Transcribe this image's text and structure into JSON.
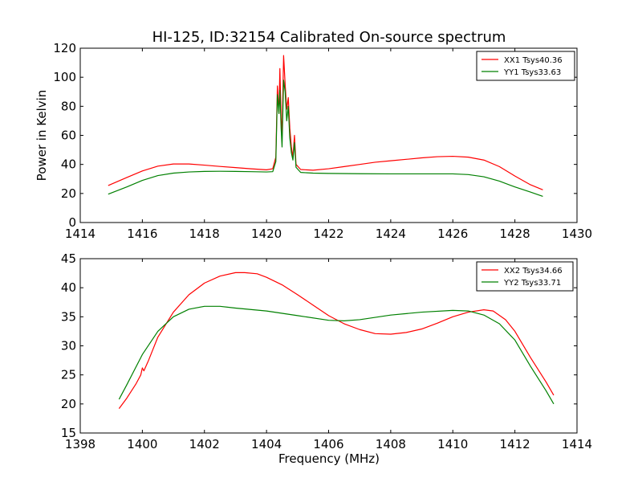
{
  "chart_data": [
    {
      "type": "line",
      "title": "HI-125, ID:32154 Calibrated On-source spectrum",
      "xlabel": "",
      "ylabel": "Power in Kelvin",
      "xlim": [
        1414,
        1430
      ],
      "ylim": [
        0,
        120
      ],
      "xticks": [
        1414,
        1416,
        1418,
        1420,
        1422,
        1424,
        1426,
        1428,
        1430
      ],
      "yticks": [
        0,
        20,
        40,
        60,
        80,
        100,
        120
      ],
      "grid": false,
      "legend_position": "top-right",
      "series": [
        {
          "name": "XX1 Tsys40.36",
          "color": "#ff0000",
          "points": [
            [
              1414.9,
              25.5
            ],
            [
              1415.5,
              31
            ],
            [
              1416.0,
              35.5
            ],
            [
              1416.5,
              38.8
            ],
            [
              1417.0,
              40.3
            ],
            [
              1417.5,
              40.3
            ],
            [
              1418.0,
              39.5
            ],
            [
              1418.5,
              38.6
            ],
            [
              1419.0,
              37.8
            ],
            [
              1419.5,
              37.0
            ],
            [
              1420.0,
              36.3
            ],
            [
              1420.2,
              37.0
            ],
            [
              1420.3,
              45.0
            ],
            [
              1420.35,
              94.0
            ],
            [
              1420.4,
              75.0
            ],
            [
              1420.43,
              106.0
            ],
            [
              1420.47,
              72.0
            ],
            [
              1420.5,
              60.0
            ],
            [
              1420.55,
              115.0
            ],
            [
              1420.6,
              95.0
            ],
            [
              1420.65,
              78.0
            ],
            [
              1420.7,
              86.0
            ],
            [
              1420.75,
              65.0
            ],
            [
              1420.8,
              52.0
            ],
            [
              1420.85,
              45.0
            ],
            [
              1420.9,
              60.0
            ],
            [
              1420.95,
              40.0
            ],
            [
              1421.1,
              36.5
            ],
            [
              1421.5,
              36.0
            ],
            [
              1422.0,
              37.0
            ],
            [
              1422.5,
              38.5
            ],
            [
              1423.0,
              40.0
            ],
            [
              1423.5,
              41.5
            ],
            [
              1424.0,
              42.5
            ],
            [
              1424.5,
              43.5
            ],
            [
              1425.0,
              44.5
            ],
            [
              1425.5,
              45.3
            ],
            [
              1426.0,
              45.6
            ],
            [
              1426.5,
              45.0
            ],
            [
              1427.0,
              43.0
            ],
            [
              1427.5,
              38.5
            ],
            [
              1428.0,
              32.0
            ],
            [
              1428.5,
              26.0
            ],
            [
              1428.9,
              22.5
            ]
          ]
        },
        {
          "name": "YY1 Tsys33.63",
          "color": "#008000",
          "points": [
            [
              1414.9,
              19.5
            ],
            [
              1415.5,
              24.5
            ],
            [
              1416.0,
              29.0
            ],
            [
              1416.5,
              32.3
            ],
            [
              1417.0,
              34.0
            ],
            [
              1417.5,
              34.8
            ],
            [
              1418.0,
              35.2
            ],
            [
              1418.5,
              35.3
            ],
            [
              1419.0,
              35.2
            ],
            [
              1419.5,
              35.0
            ],
            [
              1420.0,
              34.8
            ],
            [
              1420.2,
              35.0
            ],
            [
              1420.3,
              42.0
            ],
            [
              1420.35,
              88.0
            ],
            [
              1420.4,
              75.0
            ],
            [
              1420.43,
              91.0
            ],
            [
              1420.47,
              65.0
            ],
            [
              1420.5,
              52.0
            ],
            [
              1420.55,
              98.0
            ],
            [
              1420.6,
              90.0
            ],
            [
              1420.65,
              70.0
            ],
            [
              1420.7,
              80.0
            ],
            [
              1420.75,
              58.0
            ],
            [
              1420.8,
              48.0
            ],
            [
              1420.85,
              43.0
            ],
            [
              1420.9,
              55.0
            ],
            [
              1420.95,
              38.0
            ],
            [
              1421.1,
              34.5
            ],
            [
              1421.5,
              34.0
            ],
            [
              1422.0,
              33.8
            ],
            [
              1423.0,
              33.6
            ],
            [
              1424.0,
              33.5
            ],
            [
              1425.0,
              33.5
            ],
            [
              1426.0,
              33.5
            ],
            [
              1426.5,
              33.0
            ],
            [
              1427.0,
              31.5
            ],
            [
              1427.5,
              28.5
            ],
            [
              1428.0,
              24.5
            ],
            [
              1428.5,
              21.0
            ],
            [
              1428.9,
              18.0
            ]
          ]
        }
      ]
    },
    {
      "type": "line",
      "title": "",
      "xlabel": "Frequency (MHz)",
      "ylabel": "",
      "xlim": [
        1398,
        1414
      ],
      "ylim": [
        15,
        45
      ],
      "xticks": [
        1398,
        1400,
        1402,
        1404,
        1406,
        1408,
        1410,
        1412,
        1414
      ],
      "yticks": [
        15,
        20,
        25,
        30,
        35,
        40,
        45
      ],
      "grid": false,
      "legend_position": "top-right",
      "series": [
        {
          "name": "XX2 Tsys34.66",
          "color": "#ff0000",
          "points": [
            [
              1399.25,
              19.2
            ],
            [
              1399.5,
              21.0
            ],
            [
              1399.8,
              23.5
            ],
            [
              1399.95,
              25.0
            ],
            [
              1400.0,
              26.2
            ],
            [
              1400.05,
              25.7
            ],
            [
              1400.2,
              27.5
            ],
            [
              1400.5,
              31.5
            ],
            [
              1401.0,
              35.8
            ],
            [
              1401.5,
              38.8
            ],
            [
              1402.0,
              40.8
            ],
            [
              1402.5,
              42.0
            ],
            [
              1403.0,
              42.6
            ],
            [
              1403.3,
              42.6
            ],
            [
              1403.7,
              42.4
            ],
            [
              1404.0,
              41.8
            ],
            [
              1404.5,
              40.5
            ],
            [
              1405.0,
              38.8
            ],
            [
              1405.5,
              37.0
            ],
            [
              1406.0,
              35.2
            ],
            [
              1406.5,
              33.8
            ],
            [
              1407.0,
              32.8
            ],
            [
              1407.5,
              32.1
            ],
            [
              1408.0,
              32.0
            ],
            [
              1408.5,
              32.3
            ],
            [
              1409.0,
              32.9
            ],
            [
              1409.5,
              33.9
            ],
            [
              1410.0,
              35.0
            ],
            [
              1410.5,
              35.8
            ],
            [
              1411.0,
              36.2
            ],
            [
              1411.3,
              36.0
            ],
            [
              1411.7,
              34.5
            ],
            [
              1412.0,
              32.5
            ],
            [
              1412.5,
              28.0
            ],
            [
              1413.0,
              23.8
            ],
            [
              1413.25,
              21.5
            ]
          ]
        },
        {
          "name": "YY2 Tsys33.71",
          "color": "#008000",
          "points": [
            [
              1399.25,
              20.8
            ],
            [
              1399.5,
              23.3
            ],
            [
              1400.0,
              28.5
            ],
            [
              1400.5,
              32.5
            ],
            [
              1401.0,
              35.0
            ],
            [
              1401.5,
              36.3
            ],
            [
              1402.0,
              36.8
            ],
            [
              1402.5,
              36.8
            ],
            [
              1403.0,
              36.5
            ],
            [
              1404.0,
              36.0
            ],
            [
              1405.0,
              35.2
            ],
            [
              1406.0,
              34.4
            ],
            [
              1406.5,
              34.3
            ],
            [
              1407.0,
              34.5
            ],
            [
              1408.0,
              35.3
            ],
            [
              1409.0,
              35.8
            ],
            [
              1410.0,
              36.1
            ],
            [
              1410.5,
              36.0
            ],
            [
              1411.0,
              35.3
            ],
            [
              1411.5,
              33.8
            ],
            [
              1412.0,
              31.0
            ],
            [
              1412.5,
              26.5
            ],
            [
              1413.0,
              22.3
            ],
            [
              1413.25,
              20.0
            ]
          ]
        }
      ]
    }
  ]
}
